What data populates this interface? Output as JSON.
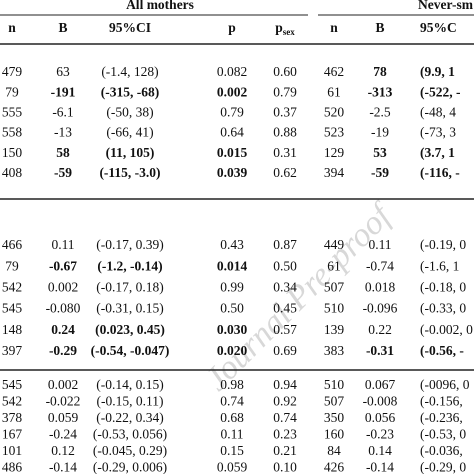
{
  "watermark": "Journal Pre-proof",
  "groups": [
    "All mothers",
    "Never-sm"
  ],
  "columns": [
    "n",
    "B",
    "95%CI",
    "p",
    {
      "text": "p",
      "sub": "sex"
    },
    "n",
    "B",
    "95%C"
  ],
  "blocks": [
    {
      "rows": [
        {
          "cells": [
            "479",
            "63",
            "(-1.4, 128)",
            "0.082",
            "0.60",
            "462",
            "78",
            "(9.9, 1"
          ],
          "bold": [
            6,
            7
          ]
        },
        {
          "cells": [
            "79",
            "-191",
            "(-315, -68)",
            "0.002",
            "0.79",
            "61",
            "-313",
            "(-522, -"
          ],
          "bold": [
            1,
            2,
            3,
            6,
            7
          ]
        },
        {
          "cells": [
            "555",
            "-6.1",
            "(-50, 38)",
            "0.79",
            "0.37",
            "520",
            "-2.5",
            "(-48, 4"
          ],
          "bold": []
        },
        {
          "cells": [
            "558",
            "-13",
            "(-66, 41)",
            "0.64",
            "0.88",
            "523",
            "-19",
            "(-73, 3"
          ],
          "bold": []
        },
        {
          "cells": [
            "150",
            "58",
            "(11, 105)",
            "0.015",
            "0.31",
            "129",
            "53",
            "(3.7, 1"
          ],
          "bold": [
            1,
            2,
            3,
            6,
            7
          ]
        },
        {
          "cells": [
            "408",
            "-59",
            "(-115, -3.0)",
            "0.039",
            "0.62",
            "394",
            "-59",
            "(-116, -"
          ],
          "bold": [
            1,
            2,
            3,
            6,
            7
          ]
        }
      ]
    },
    {
      "rows": [
        {
          "cells": [
            "466",
            "0.11",
            "(-0.17, 0.39)",
            "0.43",
            "0.87",
            "449",
            "0.11",
            "(-0.19, 0"
          ],
          "bold": []
        },
        {
          "cells": [
            "79",
            "-0.67",
            "(-1.2, -0.14)",
            "0.014",
            "0.50",
            "61",
            "-0.74",
            "(-1.6, 1"
          ],
          "bold": [
            1,
            2,
            3
          ]
        },
        {
          "cells": [
            "542",
            "0.002",
            "(-0.17, 0.18)",
            "0.99",
            "0.34",
            "507",
            "0.018",
            "(-0.18, 0"
          ],
          "bold": []
        },
        {
          "cells": [
            "545",
            "-0.080",
            "(-0.31, 0.15)",
            "0.50",
            "0.45",
            "510",
            "-0.096",
            "(-0.33, 0"
          ],
          "bold": []
        },
        {
          "cells": [
            "148",
            "0.24",
            "(0.023, 0.45)",
            "0.030",
            "0.57",
            "139",
            "0.22",
            "(-0.002, 0"
          ],
          "bold": [
            1,
            2,
            3
          ]
        },
        {
          "cells": [
            "397",
            "-0.29",
            "(-0.54, -0.047)",
            "0.020",
            "0.69",
            "383",
            "-0.31",
            "(-0.56, -"
          ],
          "bold": [
            1,
            2,
            3,
            6,
            7
          ]
        }
      ]
    },
    {
      "rows": [
        {
          "cells": [
            "545",
            "0.002",
            "(-0.14, 0.15)",
            "0.98",
            "0.94",
            "510",
            "0.067",
            "(-0096, 0"
          ],
          "bold": []
        },
        {
          "cells": [
            "542",
            "-0.022",
            "(-0.15, 0.11)",
            "0.74",
            "0.92",
            "507",
            "-0.008",
            "(-0.156, "
          ],
          "bold": []
        },
        {
          "cells": [
            "378",
            "0.059",
            "(-0.22, 0.34)",
            "0.68",
            "0.74",
            "350",
            "0.056",
            "(-0.236, "
          ],
          "bold": []
        },
        {
          "cells": [
            "167",
            "-0.24",
            "(-0.53, 0.056)",
            "0.11",
            "0.23",
            "160",
            "-0.23",
            "(-0.53, 0"
          ],
          "bold": []
        },
        {
          "cells": [
            "101",
            "0.12",
            "(-0.045, 0.29)",
            "0.15",
            "0.21",
            "84",
            "0.14",
            "(-0.036, "
          ],
          "bold": []
        },
        {
          "cells": [
            "486",
            "-0.14",
            "(-0.29, 0.006)",
            "0.059",
            "0.10",
            "426",
            "-0.14",
            "(-0.29, 0"
          ],
          "bold": []
        }
      ]
    }
  ]
}
